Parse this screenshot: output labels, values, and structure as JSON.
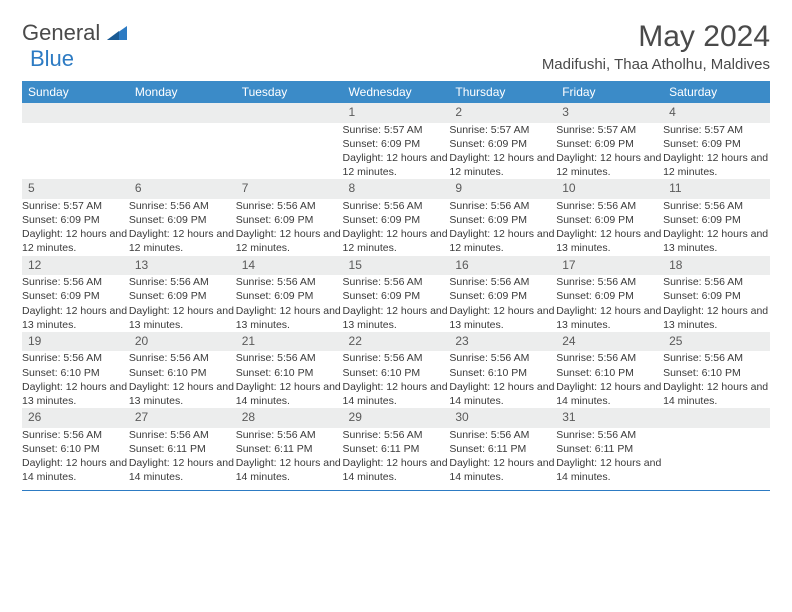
{
  "logo": {
    "general": "General",
    "blue": "Blue"
  },
  "title": "May 2024",
  "location": "Madifushi, Thaa Atholhu, Maldives",
  "colors": {
    "header_bg": "#3b8bc8",
    "header_text": "#ffffff",
    "daynum_bg": "#eceded",
    "accent_border": "#2d7bc3",
    "text": "#3a3a3a",
    "title_text": "#4a4a4a",
    "logo_blue": "#2d7bc3"
  },
  "weekdays": [
    "Sunday",
    "Monday",
    "Tuesday",
    "Wednesday",
    "Thursday",
    "Friday",
    "Saturday"
  ],
  "weeks": [
    {
      "nums": [
        "",
        "",
        "",
        "1",
        "2",
        "3",
        "4"
      ],
      "details": [
        "",
        "",
        "",
        "Sunrise: 5:57 AM\nSunset: 6:09 PM\nDaylight: 12 hours and 12 minutes.",
        "Sunrise: 5:57 AM\nSunset: 6:09 PM\nDaylight: 12 hours and 12 minutes.",
        "Sunrise: 5:57 AM\nSunset: 6:09 PM\nDaylight: 12 hours and 12 minutes.",
        "Sunrise: 5:57 AM\nSunset: 6:09 PM\nDaylight: 12 hours and 12 minutes."
      ]
    },
    {
      "nums": [
        "5",
        "6",
        "7",
        "8",
        "9",
        "10",
        "11"
      ],
      "details": [
        "Sunrise: 5:57 AM\nSunset: 6:09 PM\nDaylight: 12 hours and 12 minutes.",
        "Sunrise: 5:56 AM\nSunset: 6:09 PM\nDaylight: 12 hours and 12 minutes.",
        "Sunrise: 5:56 AM\nSunset: 6:09 PM\nDaylight: 12 hours and 12 minutes.",
        "Sunrise: 5:56 AM\nSunset: 6:09 PM\nDaylight: 12 hours and 12 minutes.",
        "Sunrise: 5:56 AM\nSunset: 6:09 PM\nDaylight: 12 hours and 12 minutes.",
        "Sunrise: 5:56 AM\nSunset: 6:09 PM\nDaylight: 12 hours and 13 minutes.",
        "Sunrise: 5:56 AM\nSunset: 6:09 PM\nDaylight: 12 hours and 13 minutes."
      ]
    },
    {
      "nums": [
        "12",
        "13",
        "14",
        "15",
        "16",
        "17",
        "18"
      ],
      "details": [
        "Sunrise: 5:56 AM\nSunset: 6:09 PM\nDaylight: 12 hours and 13 minutes.",
        "Sunrise: 5:56 AM\nSunset: 6:09 PM\nDaylight: 12 hours and 13 minutes.",
        "Sunrise: 5:56 AM\nSunset: 6:09 PM\nDaylight: 12 hours and 13 minutes.",
        "Sunrise: 5:56 AM\nSunset: 6:09 PM\nDaylight: 12 hours and 13 minutes.",
        "Sunrise: 5:56 AM\nSunset: 6:09 PM\nDaylight: 12 hours and 13 minutes.",
        "Sunrise: 5:56 AM\nSunset: 6:09 PM\nDaylight: 12 hours and 13 minutes.",
        "Sunrise: 5:56 AM\nSunset: 6:09 PM\nDaylight: 12 hours and 13 minutes."
      ]
    },
    {
      "nums": [
        "19",
        "20",
        "21",
        "22",
        "23",
        "24",
        "25"
      ],
      "details": [
        "Sunrise: 5:56 AM\nSunset: 6:10 PM\nDaylight: 12 hours and 13 minutes.",
        "Sunrise: 5:56 AM\nSunset: 6:10 PM\nDaylight: 12 hours and 13 minutes.",
        "Sunrise: 5:56 AM\nSunset: 6:10 PM\nDaylight: 12 hours and 14 minutes.",
        "Sunrise: 5:56 AM\nSunset: 6:10 PM\nDaylight: 12 hours and 14 minutes.",
        "Sunrise: 5:56 AM\nSunset: 6:10 PM\nDaylight: 12 hours and 14 minutes.",
        "Sunrise: 5:56 AM\nSunset: 6:10 PM\nDaylight: 12 hours and 14 minutes.",
        "Sunrise: 5:56 AM\nSunset: 6:10 PM\nDaylight: 12 hours and 14 minutes."
      ]
    },
    {
      "nums": [
        "26",
        "27",
        "28",
        "29",
        "30",
        "31",
        ""
      ],
      "details": [
        "Sunrise: 5:56 AM\nSunset: 6:10 PM\nDaylight: 12 hours and 14 minutes.",
        "Sunrise: 5:56 AM\nSunset: 6:11 PM\nDaylight: 12 hours and 14 minutes.",
        "Sunrise: 5:56 AM\nSunset: 6:11 PM\nDaylight: 12 hours and 14 minutes.",
        "Sunrise: 5:56 AM\nSunset: 6:11 PM\nDaylight: 12 hours and 14 minutes.",
        "Sunrise: 5:56 AM\nSunset: 6:11 PM\nDaylight: 12 hours and 14 minutes.",
        "Sunrise: 5:56 AM\nSunset: 6:11 PM\nDaylight: 12 hours and 14 minutes.",
        ""
      ]
    }
  ]
}
